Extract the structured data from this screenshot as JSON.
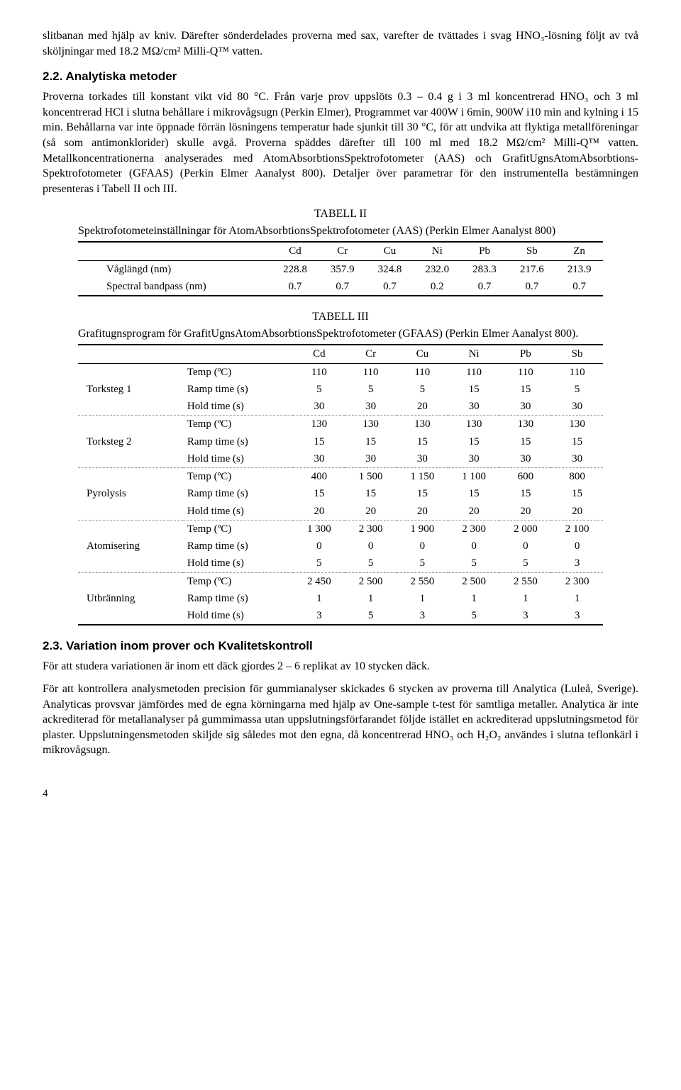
{
  "para1": "slitbanan med hjälp av kniv. Därefter sönderdelades proverna med sax, varefter de tvättades i svag HNO₃-lösning följt av två sköljningar med 18.2 MΩ/cm² Milli-Q™ vatten.",
  "sec22_title": "2.2. Analytiska metoder",
  "para2": "Proverna torkades till konstant vikt vid 80 °C. Från varje prov uppslöts 0.3 – 0.4 g i 3 ml koncentrerad HNO₃ och 3 ml koncentrerad HCl i slutna behållare i mikrovågsugn (Perkin Elmer), Programmet var 400W i 6min, 900W i10 min and kylning i 15 min. Behållarna var inte öppnade förrän lösningens temperatur hade sjunkit till 30 °C, för att undvika att flyktiga metallföreningar (så som antimonklorider) skulle avgå. Proverna späddes därefter till 100 ml med 18.2 MΩ/cm² Milli-Q™ vatten. Metallkoncentrationerna analyserades med AtomAbsorbtionsSpektrofotometer (AAS) och GrafitUgnsAtomAbsorbtions-Spektrofotometer (GFAAS) (Perkin Elmer Aanalyst 800). Detaljer över parametrar för den instrumentella bestämningen presenteras i Tabell II och III.",
  "table2": {
    "caption": "TABELL II",
    "desc": "Spektrofotometeinställningar för AtomAbsorbtionsSpektrofotometer (AAS) (Perkin Elmer Aanalyst 800)",
    "columns": [
      "Cd",
      "Cr",
      "Cu",
      "Ni",
      "Pb",
      "Sb",
      "Zn"
    ],
    "rows": [
      {
        "label": "Våglängd (nm)",
        "vals": [
          "228.8",
          "357.9",
          "324.8",
          "232.0",
          "283.3",
          "217.6",
          "213.9"
        ]
      },
      {
        "label": "Spectral bandpass (nm)",
        "vals": [
          "0.7",
          "0.7",
          "0.7",
          "0.2",
          "0.7",
          "0.7",
          "0.7"
        ]
      }
    ]
  },
  "table3": {
    "caption": "TABELL III",
    "desc": "Grafitugnsprogram för GrafitUgnsAtomAbsorbtionsSpektrofotometer (GFAAS) (Perkin Elmer Aanalyst 800).",
    "columns": [
      "Cd",
      "Cr",
      "Cu",
      "Ni",
      "Pb",
      "Sb"
    ],
    "params": [
      "Temp (ºC)",
      "Ramp time (s)",
      "Hold time (s)"
    ],
    "steps": [
      {
        "name": "Torksteg 1",
        "rows": [
          [
            "110",
            "110",
            "110",
            "110",
            "110",
            "110"
          ],
          [
            "5",
            "5",
            "5",
            "15",
            "15",
            "5"
          ],
          [
            "30",
            "30",
            "20",
            "30",
            "30",
            "30"
          ]
        ]
      },
      {
        "name": "Torksteg 2",
        "rows": [
          [
            "130",
            "130",
            "130",
            "130",
            "130",
            "130"
          ],
          [
            "15",
            "15",
            "15",
            "15",
            "15",
            "15"
          ],
          [
            "30",
            "30",
            "30",
            "30",
            "30",
            "30"
          ]
        ]
      },
      {
        "name": "Pyrolysis",
        "rows": [
          [
            "400",
            "1 500",
            "1 150",
            "1 100",
            "600",
            "800"
          ],
          [
            "15",
            "15",
            "15",
            "15",
            "15",
            "15"
          ],
          [
            "20",
            "20",
            "20",
            "20",
            "20",
            "20"
          ]
        ]
      },
      {
        "name": "Atomisering",
        "rows": [
          [
            "1 300",
            "2 300",
            "1 900",
            "2 300",
            "2 000",
            "2 100"
          ],
          [
            "0",
            "0",
            "0",
            "0",
            "0",
            "0"
          ],
          [
            "5",
            "5",
            "5",
            "5",
            "5",
            "3"
          ]
        ]
      },
      {
        "name": "Utbränning",
        "rows": [
          [
            "2 450",
            "2 500",
            "2 550",
            "2 500",
            "2 550",
            "2 300"
          ],
          [
            "1",
            "1",
            "1",
            "1",
            "1",
            "1"
          ],
          [
            "3",
            "5",
            "3",
            "5",
            "3",
            "3"
          ]
        ]
      }
    ]
  },
  "sec23_title": "2.3. Variation inom prover och Kvalitetskontroll",
  "para3": "För att studera variationen är inom ett däck gjordes 2 – 6 replikat av 10 stycken däck.",
  "para4": "För att kontrollera analysmetoden precision för gummianalyser skickades 6 stycken av proverna till Analytica (Luleå, Sverige). Analyticas provsvar jämfördes med de egna körningarna med hjälp av One-sample t-test för samtliga metaller. Analytica är inte ackrediterad för metallanalyser på gummimassa utan uppslutningsförfarandet följde istället en ackrediterad uppslutningsmetod för plaster. Uppslutningensmetoden skiljde sig således mot den egna, då koncentrerad HNO₃ och H₂O₂ användes i slutna teflonkärl i mikrovågsugn.",
  "page_number": "4"
}
